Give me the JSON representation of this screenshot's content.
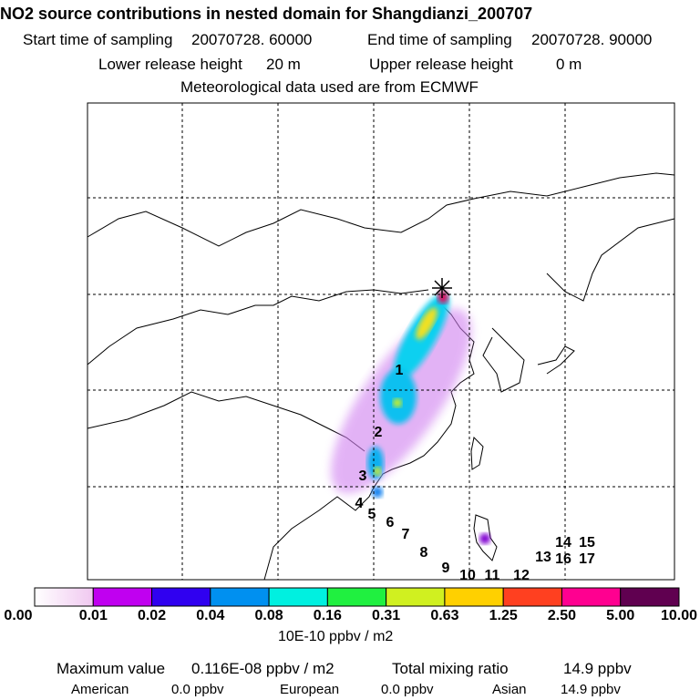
{
  "header": {
    "title": "NO2 source contributions in nested domain for Shangdianzi_200707",
    "start_label": "Start time of sampling",
    "start_value": "20070728. 60000",
    "end_label": "End time of sampling",
    "end_value": "20070728. 90000",
    "lower_label": "Lower release height",
    "lower_value": "20 m",
    "upper_label": "Upper release height",
    "upper_value": "0 m",
    "met": "Meteorological data used are from ECMWF"
  },
  "chart_data": {
    "type": "heatmap",
    "title": "NO2 source contributions in nested domain for Shangdianzi_200707",
    "colorbar": {
      "ticks": [
        "0.00",
        "0.01",
        "0.02",
        "0.04",
        "0.08",
        "0.16",
        "0.31",
        "0.63",
        "1.25",
        "2.50",
        "5.00",
        "10.00"
      ],
      "unit": "10E-10 ppbv / m2",
      "colors": [
        "#f0c8f0",
        "#c000f0",
        "#3000f0",
        "#0090f0",
        "#00f0e0",
        "#20f040",
        "#d0f020",
        "#ffd000",
        "#ff4020",
        "#ff0090",
        "#600050"
      ]
    },
    "receptor": "Shangdianzi",
    "trajectory_labels": [
      "1",
      "2",
      "3",
      "4",
      "5",
      "6",
      "7",
      "8",
      "9",
      "10",
      "11",
      "12",
      "13",
      "14",
      "15",
      "16",
      "17"
    ],
    "grid": true
  },
  "footer": {
    "max_label": "Maximum value",
    "max_value": "0.116E-08 ppbv / m2",
    "total_label": "Total mixing ratio",
    "total_value": "14.9 ppbv",
    "american_label": "American",
    "american_value": "0.0 ppbv",
    "european_label": "European",
    "european_value": "0.0 ppbv",
    "asian_label": "Asian",
    "asian_value": "14.9 ppbv"
  }
}
